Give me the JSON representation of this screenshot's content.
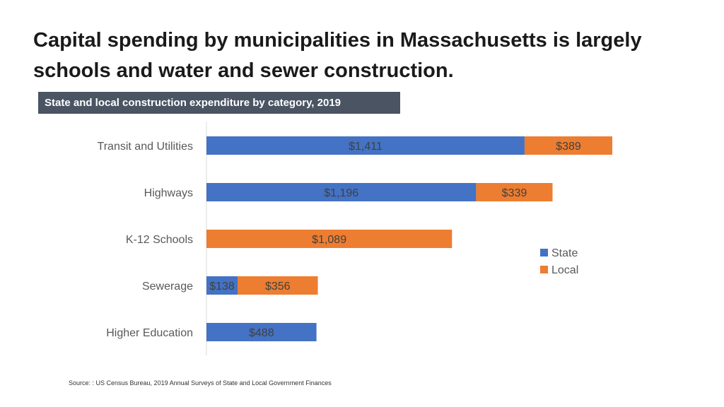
{
  "header": {
    "title": "Capital spending by municipalities in Massachusetts is largely schools and water and sewer construction.",
    "subtitle": "State and local construction expenditure by category, 2019"
  },
  "footer": {
    "source": "Source: : US Census Bureau, 2019 Annual Surveys of State and Local Government Finances"
  },
  "colors": {
    "state": "#4472c4",
    "local": "#ed7d31",
    "subtitle_bg": "#4a5463"
  },
  "chart_data": {
    "type": "bar",
    "orientation": "horizontal",
    "stacked": true,
    "categories": [
      "Transit and Utilities",
      "Highways",
      "K-12 Schools",
      "Sewerage",
      "Higher Education"
    ],
    "series": [
      {
        "name": "State",
        "values": [
          1411,
          1196,
          null,
          138,
          488
        ],
        "labels": [
          "$1,411",
          "$1,196",
          null,
          "$138",
          "$488"
        ]
      },
      {
        "name": "Local",
        "values": [
          389,
          339,
          1089,
          356,
          null
        ],
        "labels": [
          "$389",
          "$339",
          "$1,089",
          "$356",
          null
        ]
      }
    ],
    "xlim": [
      0,
      1800
    ],
    "grid": false,
    "legend_position": "right"
  }
}
